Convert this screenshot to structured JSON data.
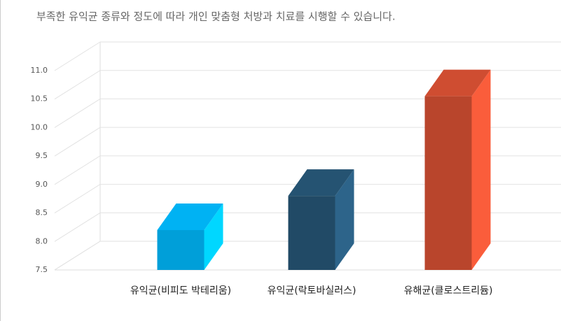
{
  "chart_data": {
    "type": "bar",
    "title": "부족한 유익균 종류와 정도에 따라 개인 맞춤형 처방과 치료를 시행할 수 있습니다.",
    "categories": [
      "유익균(비피도 박테리움)",
      "유익균(락토바실러스)",
      "유해균(클로스트리듐)"
    ],
    "values": [
      8.2,
      8.8,
      10.55
    ],
    "colors": [
      "#009fd9",
      "#214a66",
      "#b9452c"
    ],
    "ylim": [
      7.5,
      11.0
    ],
    "yticks": [
      7.5,
      {
        "value": 8,
        "label": "8.0"
      },
      8.5,
      {
        "value": 9,
        "label": "9.0"
      },
      9.5,
      {
        "value": 10,
        "label": "10.0"
      },
      10.5,
      {
        "value": 11,
        "label": "11.0"
      }
    ],
    "grid": true
  }
}
